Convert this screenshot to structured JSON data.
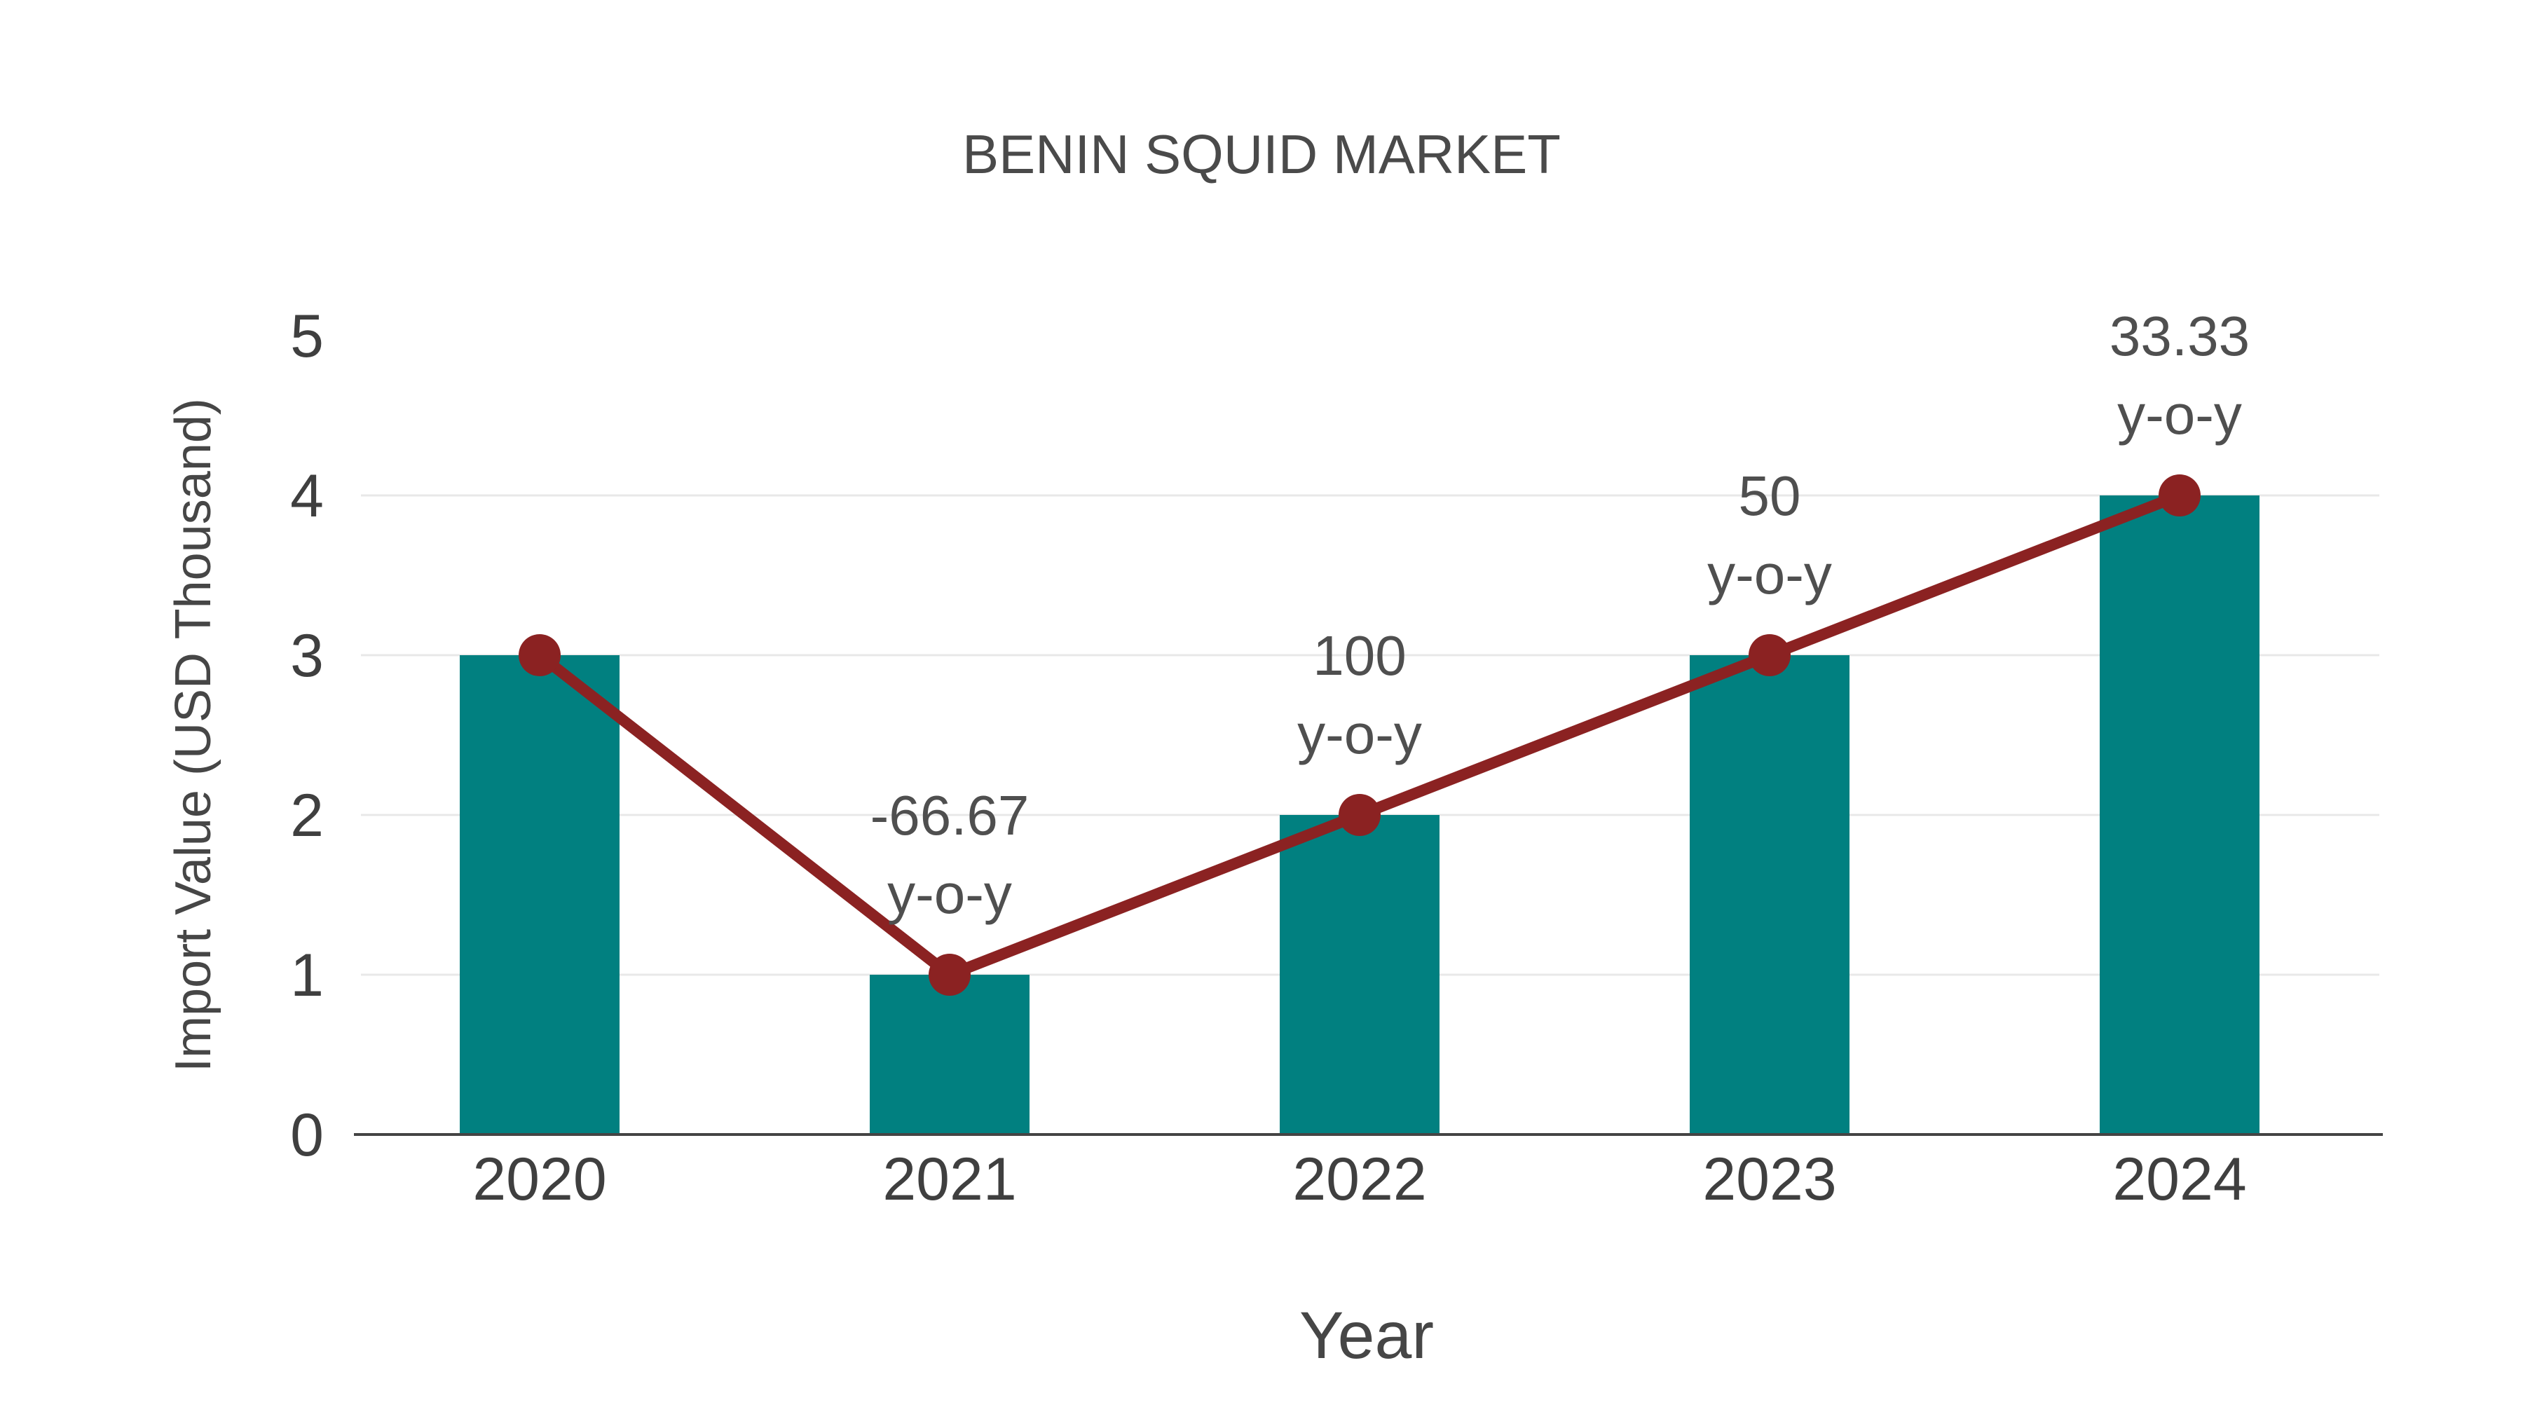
{
  "chart_data": {
    "type": "bar",
    "subtype": "bar-with-line-overlay",
    "title": "BENIN SQUID MARKET",
    "xlabel": "Year",
    "ylabel": "Import Value (USD Thousand)",
    "categories": [
      "2020",
      "2021",
      "2022",
      "2023",
      "2024"
    ],
    "series": [
      {
        "name": "import-value-bars",
        "type": "bar",
        "values": [
          3,
          1,
          2,
          3,
          4
        ],
        "color": "#018080"
      },
      {
        "name": "yoy-trend-line",
        "type": "line",
        "values": [
          3,
          1,
          2,
          3,
          4
        ],
        "color": "#8B2222",
        "marker": "circle"
      }
    ],
    "annotations": [
      {
        "category": "2021",
        "lines": [
          "-66.67",
          "y-o-y"
        ]
      },
      {
        "category": "2022",
        "lines": [
          "100",
          "y-o-y"
        ]
      },
      {
        "category": "2023",
        "lines": [
          "50",
          "y-o-y"
        ]
      },
      {
        "category": "2024",
        "lines": [
          "33.33",
          "y-o-y"
        ]
      }
    ],
    "yticks": [
      "0",
      "1",
      "2",
      "3",
      "4",
      "5"
    ],
    "ylim": [
      0,
      5
    ],
    "grid_values": [
      1,
      2,
      3,
      4
    ],
    "grid": true,
    "legend": false
  },
  "colors": {
    "background": "#ffffff",
    "grid": "#e8e8e8",
    "axis_line": "#444444",
    "tick_text": "#3f3f3f",
    "title_text": "#4a4a4a",
    "axis_title_text": "#464646",
    "annotation_text": "#4f4f4f"
  }
}
